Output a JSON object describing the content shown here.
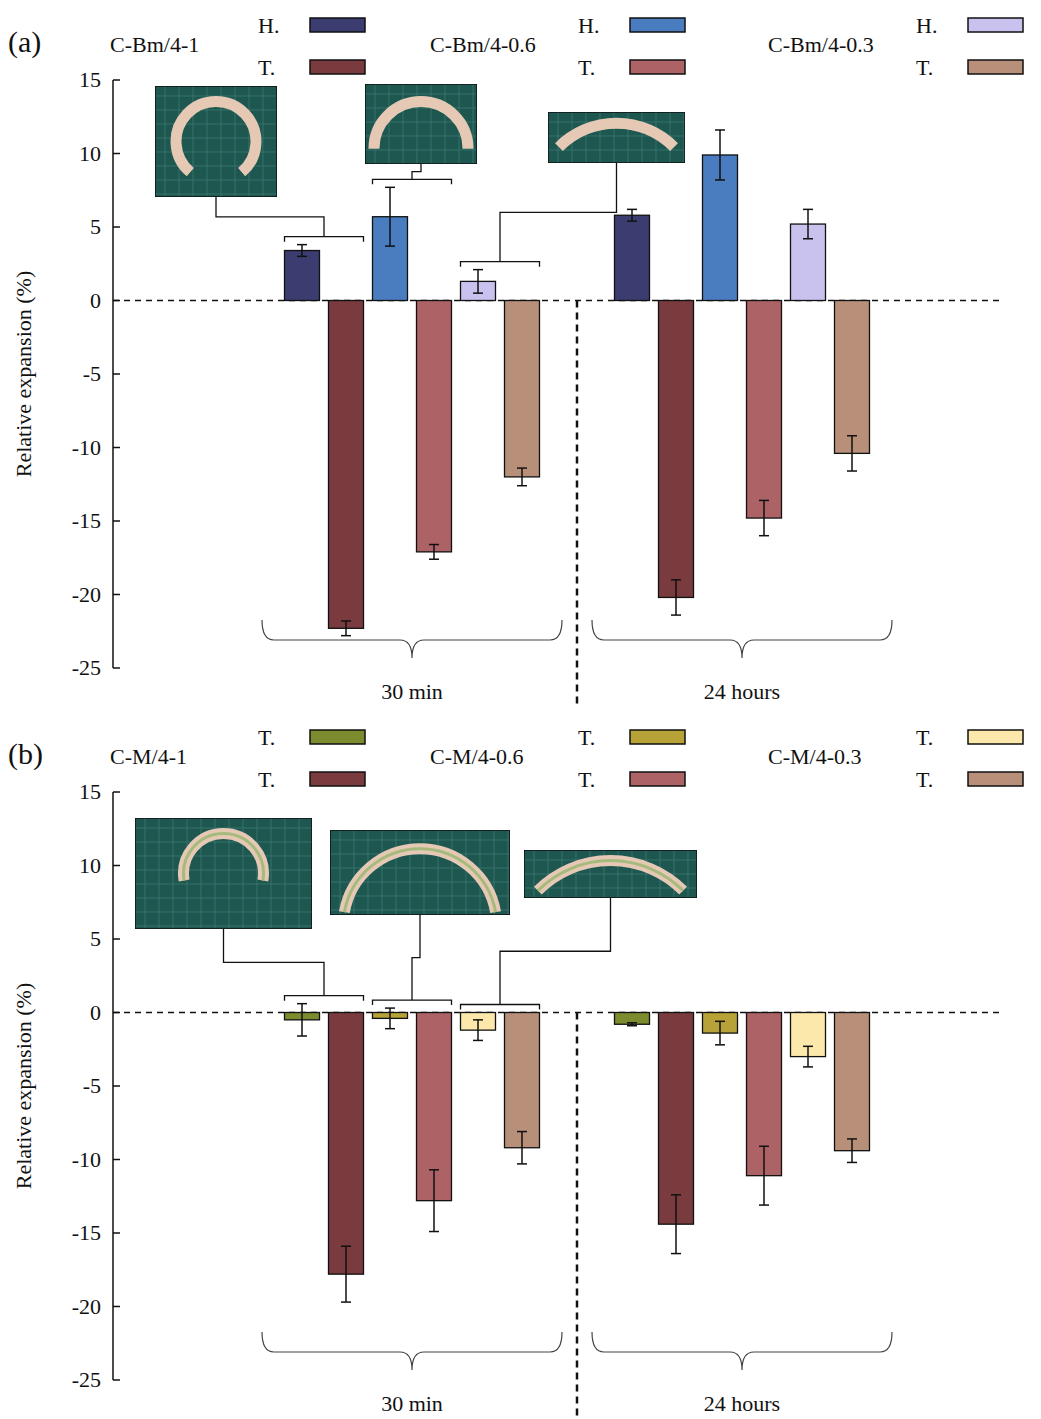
{
  "chart_data": [
    {
      "type": "bar",
      "panel_label": "(a)",
      "y_label": "Relative expansion (%)",
      "categories": [
        "30 min",
        "24 hours"
      ],
      "ylim": [
        -25,
        15
      ],
      "yticks": [
        -25,
        -20,
        -15,
        -10,
        -5,
        0,
        5,
        10,
        15
      ],
      "legend": "top",
      "series": [
        {
          "name": "H.",
          "group": "C-Bm/4-1",
          "color": "#3b3c70",
          "values": [
            3.4,
            5.8
          ],
          "errors": [
            0.4,
            0.4
          ]
        },
        {
          "name": "T.",
          "group": "C-Bm/4-1",
          "color": "#7a3b3f",
          "values": [
            -22.3,
            -20.2
          ],
          "errors": [
            0.5,
            1.2
          ]
        },
        {
          "name": "H.",
          "group": "C-Bm/4-0.6",
          "color": "#4a7dbf",
          "values": [
            5.7,
            9.9
          ],
          "errors": [
            2.0,
            1.7
          ]
        },
        {
          "name": "T.",
          "group": "C-Bm/4-0.6",
          "color": "#ad6266",
          "values": [
            -17.1,
            -14.8
          ],
          "errors": [
            0.5,
            1.2
          ]
        },
        {
          "name": "H.",
          "group": "C-Bm/4-0.3",
          "color": "#c9c2ef",
          "values": [
            1.3,
            5.2
          ],
          "errors": [
            0.8,
            1.0
          ]
        },
        {
          "name": "T.",
          "group": "C-Bm/4-0.3",
          "color": "#b88f79",
          "values": [
            -12.0,
            -10.4
          ],
          "errors": [
            0.6,
            1.2
          ]
        }
      ]
    },
    {
      "type": "bar",
      "panel_label": "(b)",
      "y_label": "Relative expansion (%)",
      "categories": [
        "30 min",
        "24 hours"
      ],
      "ylim": [
        -25,
        15
      ],
      "yticks": [
        -25,
        -20,
        -15,
        -10,
        -5,
        0,
        5,
        10,
        15
      ],
      "legend": "top",
      "series": [
        {
          "name": "T.",
          "group": "C-M/4-1",
          "color": "#7d8b2f",
          "values": [
            -0.5,
            -0.8
          ],
          "errors": [
            1.1,
            0.1
          ]
        },
        {
          "name": "T.",
          "group": "C-M/4-1",
          "color": "#7a3b3f",
          "values": [
            -17.8,
            -14.4
          ],
          "errors": [
            1.9,
            2.0
          ]
        },
        {
          "name": "T.",
          "group": "C-M/4-0.6",
          "color": "#b6a236",
          "values": [
            -0.4,
            -1.4
          ],
          "errors": [
            0.7,
            0.8
          ]
        },
        {
          "name": "T.",
          "group": "C-M/4-0.6",
          "color": "#ad6266",
          "values": [
            -12.8,
            -11.1
          ],
          "errors": [
            2.1,
            2.0
          ]
        },
        {
          "name": "T.",
          "group": "C-M/4-0.3",
          "color": "#fde8ab",
          "values": [
            -1.2,
            -3.0
          ],
          "errors": [
            0.7,
            0.7
          ]
        },
        {
          "name": "T.",
          "group": "C-M/4-0.3",
          "color": "#b88f79",
          "values": [
            -9.2,
            -9.4
          ],
          "errors": [
            1.1,
            0.8
          ]
        }
      ]
    }
  ]
}
